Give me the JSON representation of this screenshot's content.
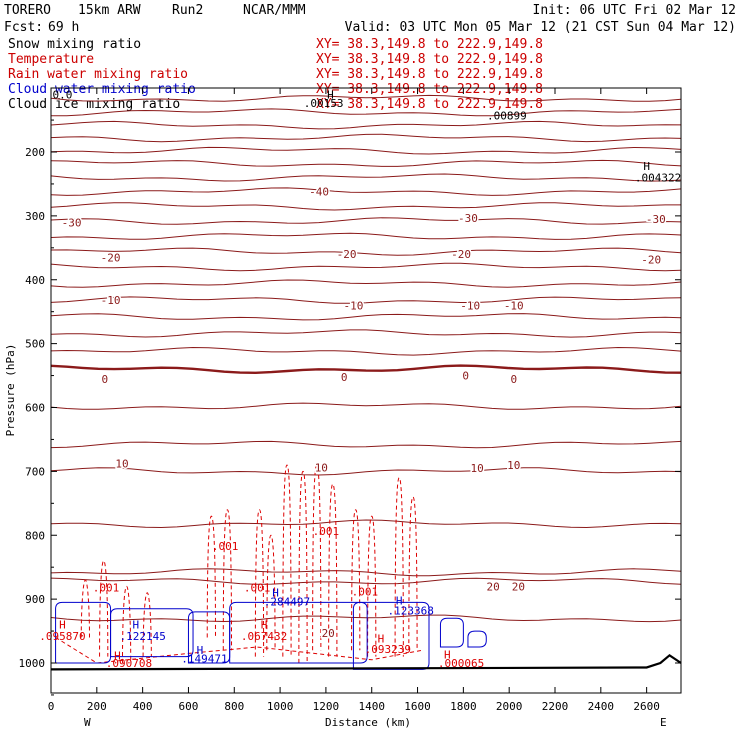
{
  "header": {
    "model": "TORERO",
    "resolution": "15km ARW",
    "run": "Run2",
    "org": "NCAR/MMM",
    "init": "Init: 06 UTC Fri 02 Mar 12",
    "fcst_label": "Fcst:",
    "fcst_value": "69 h",
    "valid": "Valid: 03 UTC Mon 05 Mar 12 (21 CST Sun 04 Mar 12)"
  },
  "fields": [
    {
      "name": "Snow mixing ratio",
      "xy": "XY=  38.3,149.8 to 222.9,149.8",
      "color": "#000000"
    },
    {
      "name": "Temperature",
      "xy": "XY=  38.3,149.8 to 222.9,149.8",
      "color": "#cc0000"
    },
    {
      "name": "Rain water mixing ratio",
      "xy": "XY=  38.3,149.8 to 222.9,149.8",
      "color": "#cc0000"
    },
    {
      "name": "Cloud water mixing ratio",
      "xy": "XY=  38.3,149.8 to 222.9,149.8",
      "color": "#0000cc"
    },
    {
      "name": "Cloud ice mixing ratio",
      "xy": "XY=  38.3,149.8 to 222.9,149.8",
      "color": "#000000"
    }
  ],
  "colors": {
    "temperature": "#8b1a1a",
    "rain": "#dd0000",
    "cloud_water": "#0000cc",
    "terrain": "#000000"
  },
  "chart_data": {
    "type": "line",
    "xlabel": "Distance (km)",
    "ylabel": "Pressure (hPa)",
    "xlim": [
      0,
      2750
    ],
    "ylim": [
      1050,
      100
    ],
    "x_ticks": [
      0,
      200,
      400,
      600,
      800,
      1000,
      1200,
      1400,
      1600,
      1800,
      2000,
      2200,
      2400,
      2600
    ],
    "y_ticks": [
      200,
      300,
      400,
      500,
      600,
      700,
      800,
      900,
      1000
    ],
    "x_end_labels": {
      "left": "W",
      "right": "E"
    },
    "temperature_contours": [
      {
        "p": 116,
        "label": ""
      },
      {
        "p": 138,
        "label": ""
      },
      {
        "p": 158,
        "label": ""
      },
      {
        "p": 178,
        "label": ""
      },
      {
        "p": 198,
        "label": ""
      },
      {
        "p": 218,
        "label": ""
      },
      {
        "p": 240,
        "label": ""
      },
      {
        "p": 262,
        "label": "-40"
      },
      {
        "p": 285,
        "label": ""
      },
      {
        "p": 308,
        "label": "-30"
      },
      {
        "p": 332,
        "label": ""
      },
      {
        "p": 356,
        "label": "-20"
      },
      {
        "p": 380,
        "label": ""
      },
      {
        "p": 406,
        "label": ""
      },
      {
        "p": 432,
        "label": "-10"
      },
      {
        "p": 458,
        "label": ""
      },
      {
        "p": 484,
        "label": ""
      },
      {
        "p": 512,
        "label": ""
      },
      {
        "p": 540,
        "label": "0"
      },
      {
        "p": 598,
        "label": ""
      },
      {
        "p": 658,
        "label": ""
      },
      {
        "p": 700,
        "label": "10"
      },
      {
        "p": 782,
        "label": ""
      },
      {
        "p": 858,
        "label": ""
      },
      {
        "p": 872,
        "label": "20"
      },
      {
        "p": 930,
        "label": ""
      }
    ],
    "contour_labels": [
      {
        "text": "-40",
        "x": 1170,
        "p": 262
      },
      {
        "text": "-30",
        "x": 90,
        "p": 310
      },
      {
        "text": "-30",
        "x": 1820,
        "p": 303
      },
      {
        "text": "-30",
        "x": 2640,
        "p": 305
      },
      {
        "text": "-20",
        "x": 260,
        "p": 365
      },
      {
        "text": "-20",
        "x": 1290,
        "p": 360
      },
      {
        "text": "-20",
        "x": 1790,
        "p": 360
      },
      {
        "text": "-20",
        "x": 2620,
        "p": 368
      },
      {
        "text": "-10",
        "x": 260,
        "p": 432
      },
      {
        "text": "-10",
        "x": 1320,
        "p": 440
      },
      {
        "text": "-10",
        "x": 1830,
        "p": 440
      },
      {
        "text": "-10",
        "x": 2020,
        "p": 440
      },
      {
        "text": "0",
        "x": 235,
        "p": 555
      },
      {
        "text": "0",
        "x": 1280,
        "p": 552
      },
      {
        "text": "0",
        "x": 1810,
        "p": 550
      },
      {
        "text": "0",
        "x": 2020,
        "p": 555
      },
      {
        "text": "10",
        "x": 310,
        "p": 688
      },
      {
        "text": "10",
        "x": 1180,
        "p": 694
      },
      {
        "text": "10",
        "x": 1860,
        "p": 695
      },
      {
        "text": "10",
        "x": 2020,
        "p": 690
      },
      {
        "text": "20",
        "x": 1210,
        "p": 953
      },
      {
        "text": "20",
        "x": 1930,
        "p": 880
      },
      {
        "text": "20",
        "x": 2040,
        "p": 880
      }
    ],
    "high_labels": [
      {
        "text": "H",
        "x": 50,
        "p": 940,
        "color": "#dd0000"
      },
      {
        "text": ".095870",
        "x": 50,
        "p": 958,
        "color": "#dd0000"
      },
      {
        "text": "H",
        "x": 370,
        "p": 940,
        "color": "#0000cc"
      },
      {
        "text": ".122145",
        "x": 400,
        "p": 958,
        "color": "#0000cc"
      },
      {
        "text": "H",
        "x": 290,
        "p": 988,
        "color": "#dd0000"
      },
      {
        "text": ".090708",
        "x": 340,
        "p": 1000,
        "color": "#dd0000"
      },
      {
        "text": "H",
        "x": 650,
        "p": 980,
        "color": "#0000cc"
      },
      {
        "text": ".149471",
        "x": 670,
        "p": 993,
        "color": "#0000cc"
      },
      {
        "text": "H",
        "x": 930,
        "p": 940,
        "color": "#dd0000"
      },
      {
        "text": ".067432",
        "x": 930,
        "p": 958,
        "color": "#dd0000"
      },
      {
        "text": "H",
        "x": 980,
        "p": 890,
        "color": "#0000cc"
      },
      {
        "text": ".284497",
        "x": 1030,
        "p": 904,
        "color": "#0000cc"
      },
      {
        "text": "H",
        "x": 1440,
        "p": 962,
        "color": "#dd0000"
      },
      {
        "text": ".093239",
        "x": 1470,
        "p": 978,
        "color": "#dd0000"
      },
      {
        "text": "H",
        "x": 1520,
        "p": 902,
        "color": "#0000cc"
      },
      {
        "text": ".123368",
        "x": 1570,
        "p": 918,
        "color": "#0000cc"
      },
      {
        "text": "H",
        "x": 1730,
        "p": 987,
        "color": "#dd0000"
      },
      {
        "text": ".000065",
        "x": 1790,
        "p": 1000,
        "color": "#dd0000"
      },
      {
        "text": "H",
        "x": 1220,
        "p": 110,
        "color": "#000000"
      },
      {
        "text": ".00153",
        "x": 1190,
        "p": 123,
        "color": "#000000"
      },
      {
        "text": ".00899",
        "x": 1990,
        "p": 143,
        "color": "#000000"
      },
      {
        "text": "H",
        "x": 2600,
        "p": 222,
        "color": "#000000"
      },
      {
        "text": ".004322",
        "x": 2650,
        "p": 240,
        "color": "#000000"
      }
    ],
    "rain_labels": [
      {
        "text": ".001",
        "x": 240,
        "p": 882
      },
      {
        "text": ".001",
        "x": 760,
        "p": 817
      },
      {
        "text": ".001",
        "x": 900,
        "p": 882
      },
      {
        "text": ".001",
        "x": 1200,
        "p": 793
      },
      {
        "text": ".001",
        "x": 1370,
        "p": 888
      }
    ],
    "top_labels": [
      {
        "text": "0.0",
        "x": 50,
        "p": 110,
        "color": "#000000"
      }
    ],
    "overlap_label": {
      "text": "XY=  38.3,149.8 to 222.9,149.8",
      "x": 1130,
      "p": 102
    }
  }
}
